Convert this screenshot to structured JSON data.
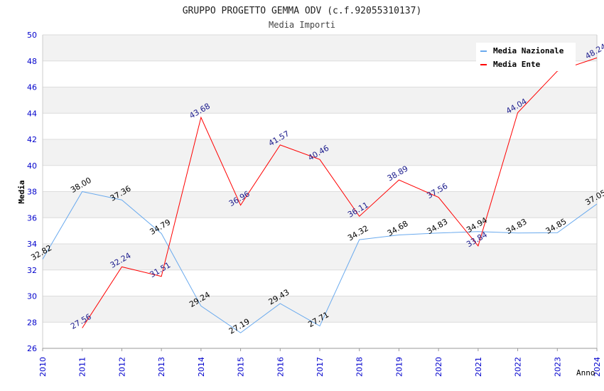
{
  "chart_data": {
    "type": "line",
    "title": "GRUPPO PROGETTO GEMMA ODV (c.f.92055310137)",
    "subtitle": "Media Importi",
    "xlabel": "Anno",
    "ylabel": "Media",
    "ylim": [
      26,
      50
    ],
    "yticks": [
      26,
      28,
      30,
      32,
      34,
      36,
      38,
      40,
      42,
      44,
      46,
      48,
      50
    ],
    "x": [
      2010,
      2011,
      2012,
      2013,
      2014,
      2015,
      2016,
      2017,
      2018,
      2019,
      2020,
      2021,
      2022,
      2023,
      2024
    ],
    "legend_position": "top-right",
    "grid": true,
    "series": [
      {
        "name": "Media Nazionale",
        "color": "#6aaaee",
        "label_color": "#000000",
        "values": [
          32.82,
          38.0,
          37.36,
          34.79,
          29.24,
          27.19,
          29.43,
          27.71,
          34.32,
          34.68,
          34.83,
          34.94,
          34.83,
          34.85,
          37.05
        ]
      },
      {
        "name": "Media Ente",
        "color": "#ff0000",
        "label_color": "#1a1a8c",
        "values": [
          null,
          27.56,
          32.24,
          31.51,
          43.68,
          36.96,
          41.57,
          40.46,
          36.11,
          38.89,
          37.56,
          33.84,
          44.04,
          47.22,
          48.24
        ]
      }
    ]
  }
}
